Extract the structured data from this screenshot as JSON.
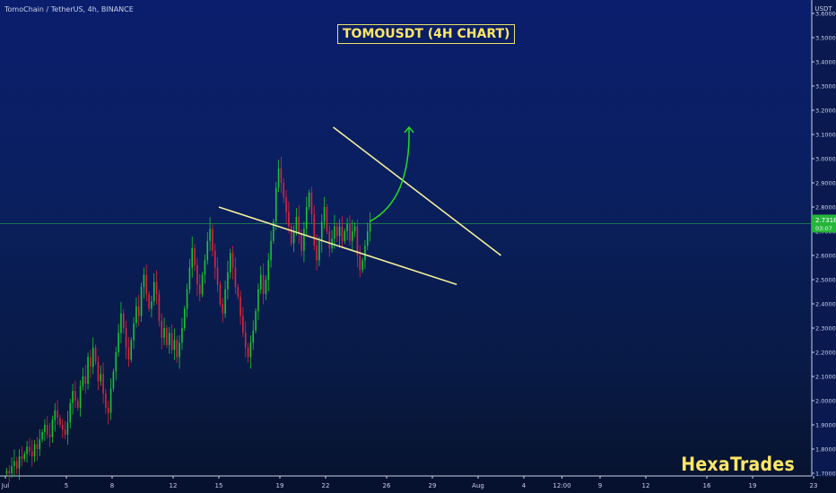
{
  "header": {
    "symbol_text": "TomoChain / TetherUS, 4h, BINANCE",
    "title": "TOMOUSDT (4H CHART)",
    "brand": "HexaTrades"
  },
  "price_axis": {
    "currency": "USDT",
    "current_price": "2.7318",
    "countdown": "03:07"
  },
  "colors": {
    "up": "#1dc432",
    "down": "#e0223b",
    "trendline": "#f2ee9a",
    "arrow": "#22dd22",
    "current_line": "#22aa55",
    "price_label_bg": "#26b53b"
  },
  "chart_data": {
    "type": "candlestick",
    "title": "TOMOUSDT (4H CHART)",
    "xlabel": "",
    "ylabel": "",
    "ylim": [
      1.7,
      3.65
    ],
    "y_ticks": [
      "3.6000",
      "3.5000",
      "3.4000",
      "3.3000",
      "3.2000",
      "3.1000",
      "3.0000",
      "2.9000",
      "2.8000",
      "2.7000",
      "2.6000",
      "2.5000",
      "2.4000",
      "2.3000",
      "2.2000",
      "2.1000",
      "2.0000",
      "1.9000",
      "1.8000",
      "1.7000"
    ],
    "y_tick_values": [
      3.6,
      3.5,
      3.4,
      3.3,
      3.2,
      3.1,
      3.0,
      2.9,
      2.8,
      2.7,
      2.6,
      2.5,
      2.4,
      2.3,
      2.2,
      2.1,
      2.0,
      1.9,
      1.8,
      1.7
    ],
    "x_tick_labels": [
      "Jul",
      "5",
      "8",
      "12",
      "15",
      "19",
      "22",
      "26",
      "29",
      "Aug",
      "4",
      "12:00",
      "9",
      "12",
      "16",
      "19",
      "23"
    ],
    "x_tick_days": [
      1,
      5,
      8,
      12,
      15,
      19,
      22,
      26,
      29,
      32,
      35,
      37.5,
      40,
      43,
      47,
      50,
      54
    ],
    "candles_start_day": 1,
    "candles_per_day": 6,
    "close": [
      1.71,
      1.7,
      1.73,
      1.75,
      1.72,
      1.77,
      1.76,
      1.78,
      1.81,
      1.79,
      1.77,
      1.82,
      1.8,
      1.84,
      1.87,
      1.9,
      1.86,
      1.85,
      1.92,
      1.96,
      1.93,
      1.9,
      1.88,
      1.86,
      1.91,
      1.99,
      2.04,
      2.0,
      1.97,
      2.06,
      2.1,
      2.07,
      2.18,
      2.14,
      2.22,
      2.16,
      2.08,
      2.11,
      2.03,
      1.97,
      1.95,
      2.05,
      2.12,
      2.2,
      2.28,
      2.36,
      2.3,
      2.22,
      2.17,
      2.25,
      2.32,
      2.39,
      2.35,
      2.47,
      2.52,
      2.44,
      2.38,
      2.41,
      2.49,
      2.44,
      2.33,
      2.26,
      2.3,
      2.23,
      2.28,
      2.21,
      2.25,
      2.18,
      2.24,
      2.3,
      2.38,
      2.46,
      2.55,
      2.63,
      2.56,
      2.48,
      2.44,
      2.52,
      2.58,
      2.66,
      2.71,
      2.62,
      2.55,
      2.48,
      2.4,
      2.36,
      2.46,
      2.53,
      2.61,
      2.55,
      2.47,
      2.43,
      2.35,
      2.28,
      2.22,
      2.18,
      2.24,
      2.29,
      2.37,
      2.46,
      2.52,
      2.44,
      2.5,
      2.58,
      2.66,
      2.74,
      2.88,
      2.96,
      2.9,
      2.84,
      2.78,
      2.72,
      2.65,
      2.7,
      2.76,
      2.69,
      2.62,
      2.71,
      2.8,
      2.86,
      2.77,
      2.64,
      2.58,
      2.66,
      2.74,
      2.8,
      2.7,
      2.63,
      2.67,
      2.72,
      2.68,
      2.72,
      2.66,
      2.7,
      2.73,
      2.66,
      2.7,
      2.72,
      2.6,
      2.54,
      2.58,
      2.64,
      2.7,
      2.73
    ],
    "series": [
      {
        "name": "",
        "x": [
          15.0,
          30.6
        ],
        "y": [
          2.8,
          2.48
        ]
      },
      {
        "name": "",
        "x": [
          22.5,
          33.5
        ],
        "y": [
          3.13,
          2.6
        ]
      }
    ]
  }
}
